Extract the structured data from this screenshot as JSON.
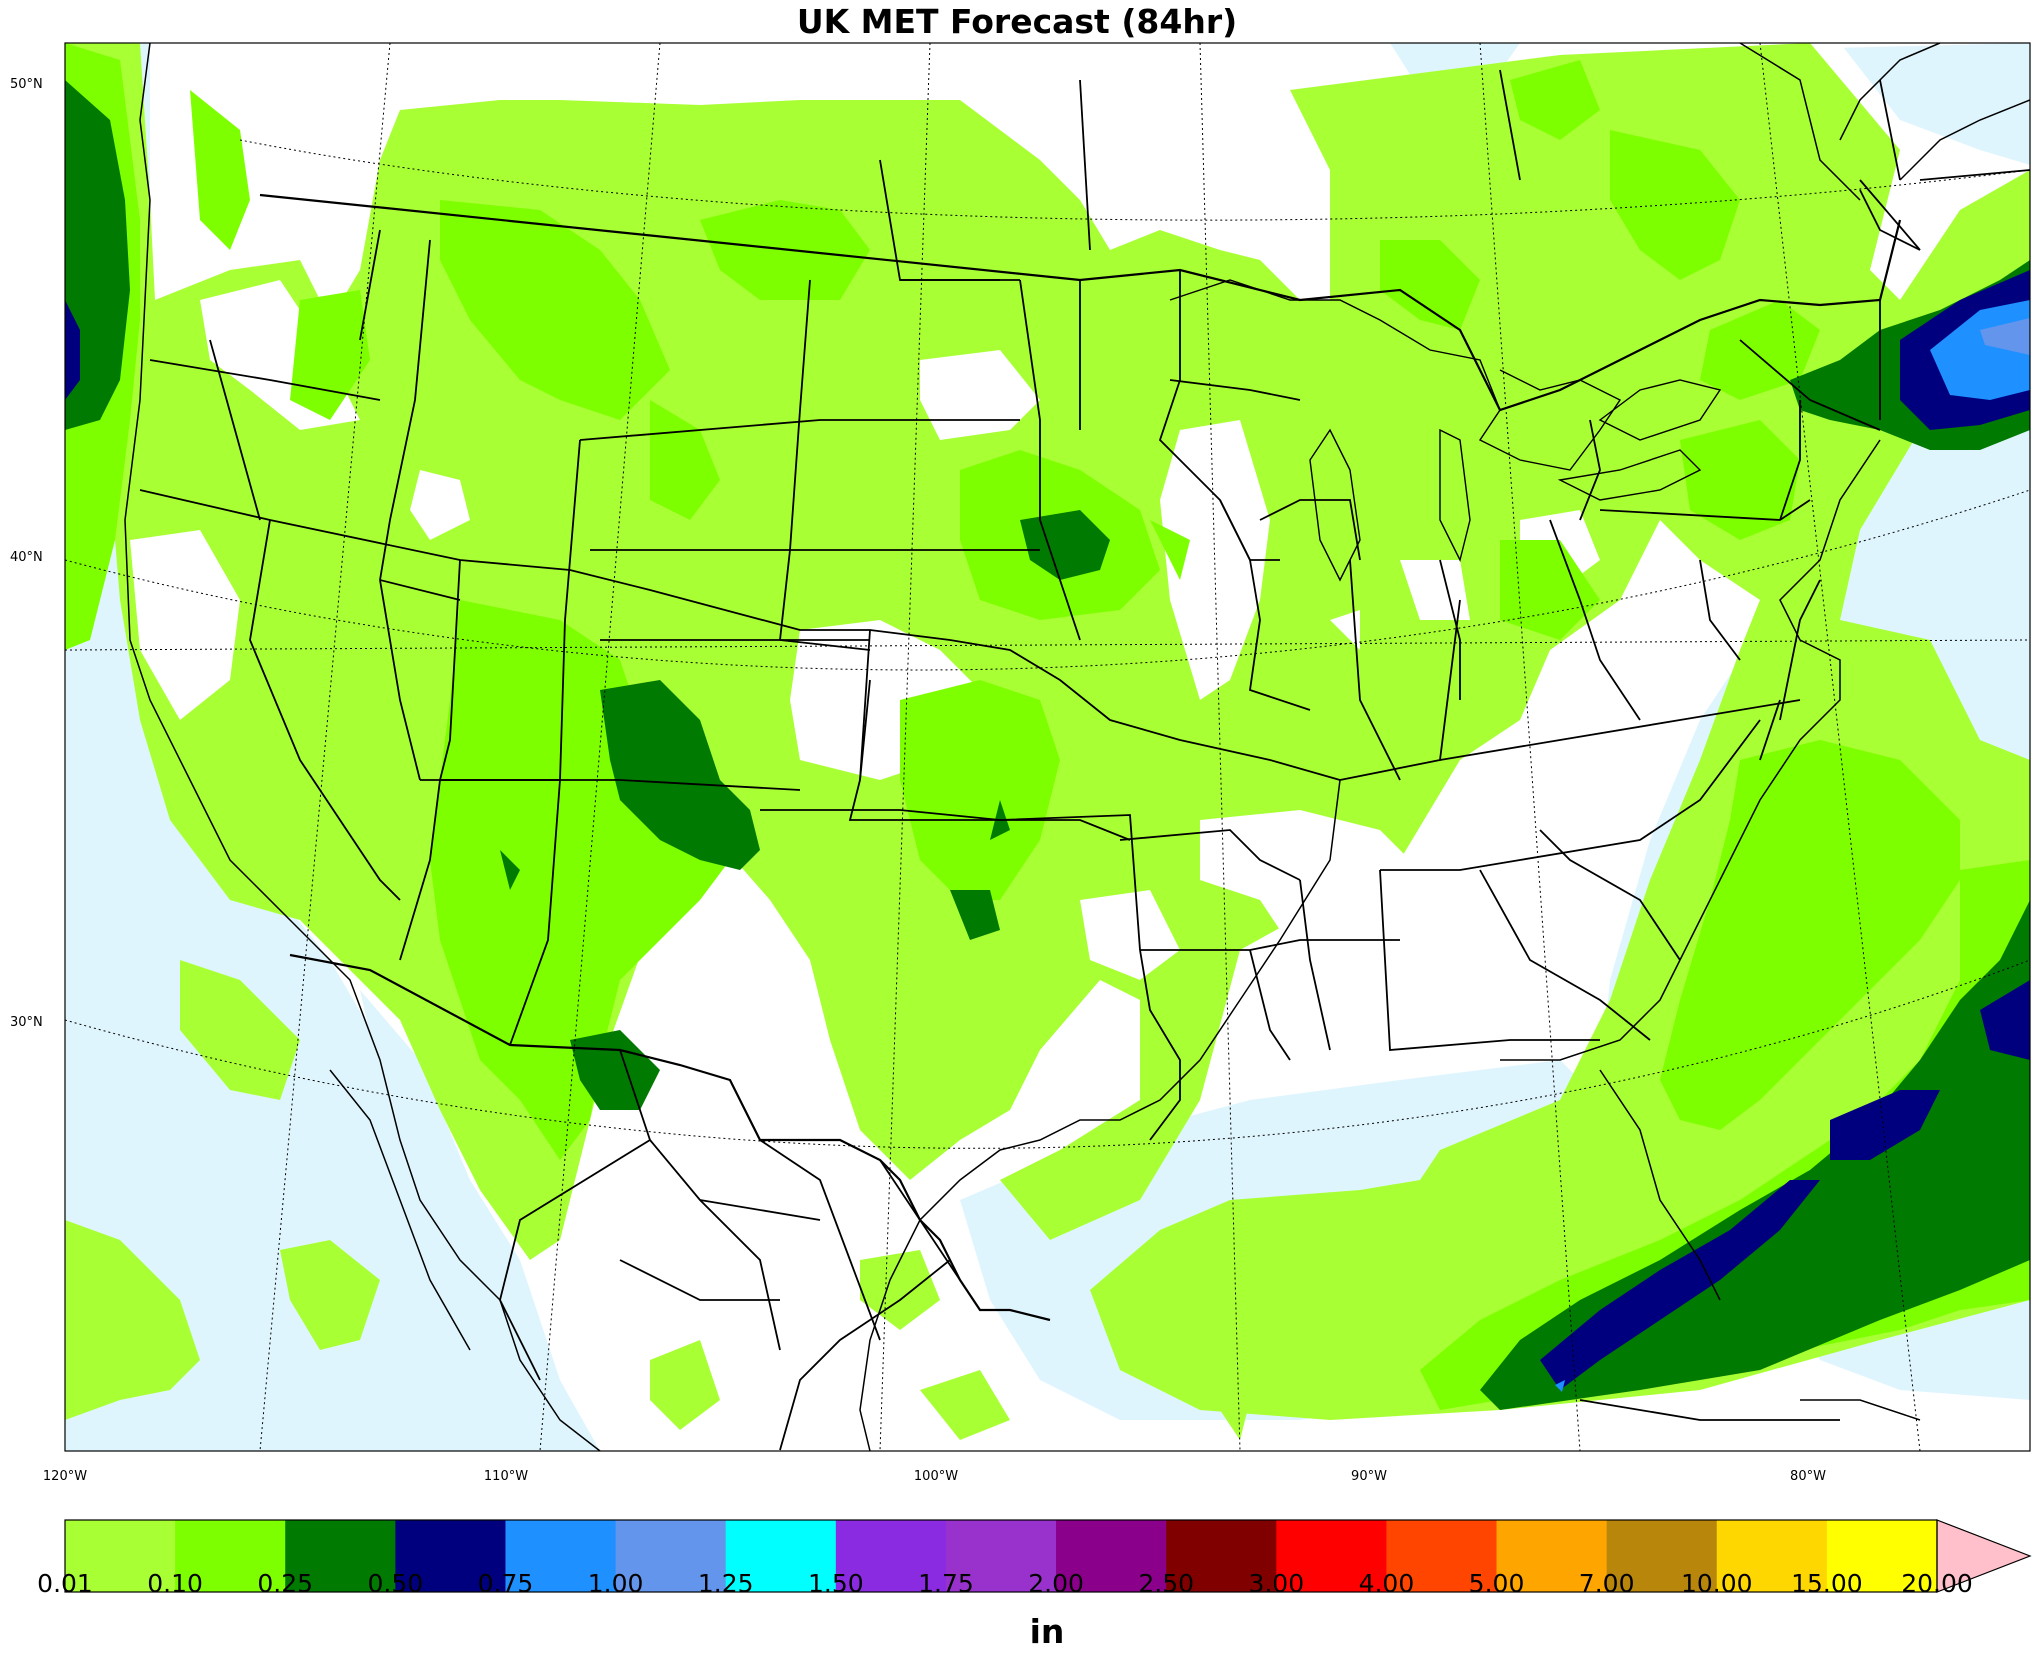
{
  "title": "UK MET Forecast (84hr)",
  "map": {
    "projection": "lambert-conformal",
    "ocean_color": "#dff5fd",
    "land_color": "#ffffff",
    "lat_labels": [
      {
        "text": "50°N"
      },
      {
        "text": "40°N"
      },
      {
        "text": "30°N"
      }
    ],
    "lon_labels": [
      {
        "text": "120°W"
      },
      {
        "text": "110°W"
      },
      {
        "text": "100°W"
      },
      {
        "text": "90°W"
      },
      {
        "text": "80°W"
      }
    ]
  },
  "colorbar": {
    "unit": "in",
    "levels": [
      "0.01",
      "0.10",
      "0.25",
      "0.50",
      "0.75",
      "1.00",
      "1.25",
      "1.50",
      "1.75",
      "2.00",
      "2.50",
      "3.00",
      "4.00",
      "5.00",
      "7.00",
      "10.00",
      "15.00",
      "20.00"
    ],
    "colors": [
      "#a8ff33",
      "#7dff00",
      "#007a00",
      "#00007f",
      "#1e90ff",
      "#6495ed",
      "#00ffff",
      "#8a2be2",
      "#9932cc",
      "#8b008b",
      "#800000",
      "#ff0000",
      "#ff4500",
      "#ffa500",
      "#b8860b",
      "#ffd700",
      "#ffff00"
    ],
    "extend_color": "#ffc0cb"
  }
}
